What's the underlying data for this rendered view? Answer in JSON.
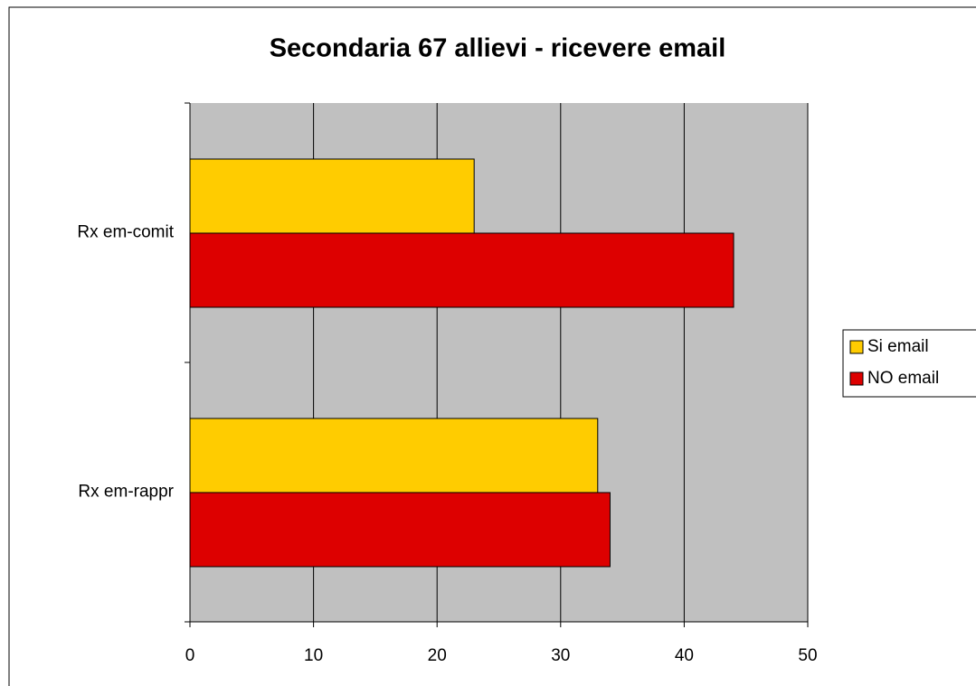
{
  "chart_data": {
    "type": "bar",
    "orientation": "horizontal",
    "title": "Secondaria 67 allievi - ricevere email",
    "categories": [
      "Rx em-comit",
      "Rx em-rappr"
    ],
    "series": [
      {
        "name": "Si email",
        "color": "#ffcc00",
        "values": [
          23,
          33
        ]
      },
      {
        "name": "NO email",
        "color": "#dd0000",
        "values": [
          44,
          34
        ]
      }
    ],
    "xlim": [
      0,
      50
    ],
    "xticks": [
      0,
      10,
      20,
      30,
      40,
      50
    ],
    "grid": true,
    "legend": "right"
  }
}
